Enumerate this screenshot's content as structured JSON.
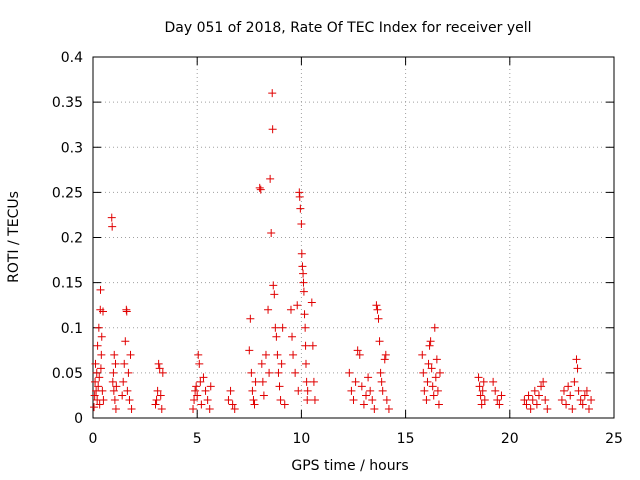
{
  "chart_data": {
    "type": "scatter",
    "title": "Day 051 of 2018, Rate Of TEC Index for receiver yell",
    "xlabel": "GPS time / hours",
    "ylabel": "ROTI / TECUs",
    "xlim": [
      0,
      25
    ],
    "ylim": [
      0,
      0.4
    ],
    "xticks": [
      0,
      5,
      10,
      15,
      20,
      25
    ],
    "xtick_labels": [
      "0",
      "5",
      "10",
      "15",
      "20",
      "25"
    ],
    "yticks": [
      0,
      0.05,
      0.1,
      0.15,
      0.2,
      0.25,
      0.3,
      0.35,
      0.4
    ],
    "ytick_labels": [
      "0",
      "0.05",
      "0.1",
      "0.15",
      "0.2",
      "0.25",
      "0.3",
      "0.35",
      "0.4"
    ],
    "grid": true,
    "marker": "+",
    "color": "#e00000",
    "series": [
      {
        "name": "ROTI",
        "points": [
          [
            0.05,
            0.012
          ],
          [
            0.08,
            0.025
          ],
          [
            0.1,
            0.04
          ],
          [
            0.12,
            0.06
          ],
          [
            0.15,
            0.03
          ],
          [
            0.18,
            0.05
          ],
          [
            0.2,
            0.02
          ],
          [
            0.22,
            0.08
          ],
          [
            0.25,
            0.035
          ],
          [
            0.28,
            0.1
          ],
          [
            0.3,
            0.045
          ],
          [
            0.32,
            0.015
          ],
          [
            0.35,
            0.12
          ],
          [
            0.36,
            0.142
          ],
          [
            0.38,
            0.055
          ],
          [
            0.4,
            0.07
          ],
          [
            0.42,
            0.09
          ],
          [
            0.45,
            0.03
          ],
          [
            0.48,
            0.118
          ],
          [
            0.5,
            0.02
          ],
          [
            0.9,
            0.222
          ],
          [
            0.92,
            0.212
          ],
          [
            0.95,
            0.04
          ],
          [
            0.98,
            0.05
          ],
          [
            1.0,
            0.03
          ],
          [
            1.02,
            0.07
          ],
          [
            1.05,
            0.02
          ],
          [
            1.08,
            0.06
          ],
          [
            1.1,
            0.01
          ],
          [
            1.12,
            0.035
          ],
          [
            1.4,
            0.025
          ],
          [
            1.45,
            0.04
          ],
          [
            1.5,
            0.06
          ],
          [
            1.55,
            0.085
          ],
          [
            1.6,
            0.12
          ],
          [
            1.62,
            0.118
          ],
          [
            1.65,
            0.03
          ],
          [
            1.7,
            0.05
          ],
          [
            1.75,
            0.02
          ],
          [
            1.8,
            0.07
          ],
          [
            1.85,
            0.01
          ],
          [
            3.0,
            0.015
          ],
          [
            3.05,
            0.02
          ],
          [
            3.1,
            0.03
          ],
          [
            3.15,
            0.06
          ],
          [
            3.2,
            0.055
          ],
          [
            3.25,
            0.025
          ],
          [
            3.3,
            0.01
          ],
          [
            3.35,
            0.05
          ],
          [
            4.8,
            0.01
          ],
          [
            4.85,
            0.02
          ],
          [
            4.9,
            0.03
          ],
          [
            4.95,
            0.035
          ],
          [
            5.0,
            0.025
          ],
          [
            5.05,
            0.07
          ],
          [
            5.1,
            0.06
          ],
          [
            5.15,
            0.04
          ],
          [
            5.2,
            0.015
          ],
          [
            5.3,
            0.045
          ],
          [
            5.4,
            0.03
          ],
          [
            5.5,
            0.02
          ],
          [
            5.6,
            0.01
          ],
          [
            5.65,
            0.035
          ],
          [
            6.5,
            0.02
          ],
          [
            6.6,
            0.03
          ],
          [
            6.7,
            0.015
          ],
          [
            6.8,
            0.01
          ],
          [
            7.5,
            0.075
          ],
          [
            7.55,
            0.11
          ],
          [
            7.6,
            0.05
          ],
          [
            7.65,
            0.03
          ],
          [
            7.7,
            0.02
          ],
          [
            7.75,
            0.015
          ],
          [
            7.8,
            0.04
          ],
          [
            8.0,
            0.255
          ],
          [
            8.05,
            0.253
          ],
          [
            8.1,
            0.06
          ],
          [
            8.15,
            0.04
          ],
          [
            8.2,
            0.025
          ],
          [
            8.3,
            0.07
          ],
          [
            8.4,
            0.12
          ],
          [
            8.45,
            0.05
          ],
          [
            8.5,
            0.265
          ],
          [
            8.55,
            0.205
          ],
          [
            8.6,
            0.36
          ],
          [
            8.62,
            0.32
          ],
          [
            8.65,
            0.147
          ],
          [
            8.7,
            0.137
          ],
          [
            8.75,
            0.1
          ],
          [
            8.8,
            0.09
          ],
          [
            8.85,
            0.07
          ],
          [
            8.9,
            0.05
          ],
          [
            8.95,
            0.035
          ],
          [
            9.0,
            0.02
          ],
          [
            9.05,
            0.06
          ],
          [
            9.1,
            0.1
          ],
          [
            9.2,
            0.015
          ],
          [
            9.5,
            0.12
          ],
          [
            9.55,
            0.09
          ],
          [
            9.6,
            0.07
          ],
          [
            9.7,
            0.05
          ],
          [
            9.8,
            0.125
          ],
          [
            9.85,
            0.03
          ],
          [
            9.9,
            0.25
          ],
          [
            9.92,
            0.245
          ],
          [
            9.95,
            0.232
          ],
          [
            10.0,
            0.215
          ],
          [
            10.02,
            0.182
          ],
          [
            10.05,
            0.168
          ],
          [
            10.08,
            0.16
          ],
          [
            10.1,
            0.15
          ],
          [
            10.12,
            0.14
          ],
          [
            10.15,
            0.115
          ],
          [
            10.18,
            0.1
          ],
          [
            10.2,
            0.08
          ],
          [
            10.22,
            0.06
          ],
          [
            10.25,
            0.04
          ],
          [
            10.28,
            0.02
          ],
          [
            10.3,
            0.03
          ],
          [
            10.5,
            0.128
          ],
          [
            10.55,
            0.08
          ],
          [
            10.6,
            0.04
          ],
          [
            10.65,
            0.02
          ],
          [
            12.3,
            0.05
          ],
          [
            12.4,
            0.03
          ],
          [
            12.5,
            0.02
          ],
          [
            12.6,
            0.04
          ],
          [
            12.7,
            0.075
          ],
          [
            12.8,
            0.07
          ],
          [
            12.9,
            0.035
          ],
          [
            13.0,
            0.015
          ],
          [
            13.1,
            0.025
          ],
          [
            13.2,
            0.045
          ],
          [
            13.3,
            0.03
          ],
          [
            13.4,
            0.02
          ],
          [
            13.5,
            0.01
          ],
          [
            13.6,
            0.125
          ],
          [
            13.65,
            0.12
          ],
          [
            13.7,
            0.11
          ],
          [
            13.75,
            0.085
          ],
          [
            13.8,
            0.05
          ],
          [
            13.85,
            0.04
          ],
          [
            13.9,
            0.03
          ],
          [
            14.0,
            0.065
          ],
          [
            14.05,
            0.07
          ],
          [
            14.1,
            0.02
          ],
          [
            14.2,
            0.01
          ],
          [
            15.8,
            0.07
          ],
          [
            15.85,
            0.05
          ],
          [
            15.9,
            0.03
          ],
          [
            16.0,
            0.02
          ],
          [
            16.05,
            0.04
          ],
          [
            16.1,
            0.06
          ],
          [
            16.15,
            0.08
          ],
          [
            16.2,
            0.085
          ],
          [
            16.25,
            0.055
          ],
          [
            16.3,
            0.035
          ],
          [
            16.35,
            0.025
          ],
          [
            16.4,
            0.1
          ],
          [
            16.45,
            0.045
          ],
          [
            16.5,
            0.065
          ],
          [
            16.55,
            0.03
          ],
          [
            16.6,
            0.015
          ],
          [
            16.65,
            0.05
          ],
          [
            18.5,
            0.045
          ],
          [
            18.55,
            0.035
          ],
          [
            18.6,
            0.025
          ],
          [
            18.65,
            0.015
          ],
          [
            18.7,
            0.03
          ],
          [
            18.75,
            0.04
          ],
          [
            18.8,
            0.02
          ],
          [
            19.2,
            0.04
          ],
          [
            19.3,
            0.03
          ],
          [
            19.4,
            0.02
          ],
          [
            19.5,
            0.015
          ],
          [
            19.6,
            0.025
          ],
          [
            20.7,
            0.02
          ],
          [
            20.8,
            0.015
          ],
          [
            20.9,
            0.025
          ],
          [
            21.0,
            0.01
          ],
          [
            21.1,
            0.02
          ],
          [
            21.2,
            0.03
          ],
          [
            21.3,
            0.015
          ],
          [
            21.4,
            0.025
          ],
          [
            21.5,
            0.035
          ],
          [
            21.6,
            0.04
          ],
          [
            21.7,
            0.02
          ],
          [
            21.8,
            0.01
          ],
          [
            22.5,
            0.02
          ],
          [
            22.6,
            0.03
          ],
          [
            22.7,
            0.015
          ],
          [
            22.8,
            0.035
          ],
          [
            22.9,
            0.025
          ],
          [
            23.0,
            0.01
          ],
          [
            23.1,
            0.04
          ],
          [
            23.2,
            0.065
          ],
          [
            23.25,
            0.055
          ],
          [
            23.3,
            0.03
          ],
          [
            23.4,
            0.02
          ],
          [
            23.5,
            0.015
          ],
          [
            23.6,
            0.025
          ],
          [
            23.7,
            0.03
          ],
          [
            23.8,
            0.01
          ],
          [
            23.9,
            0.02
          ]
        ]
      }
    ]
  }
}
